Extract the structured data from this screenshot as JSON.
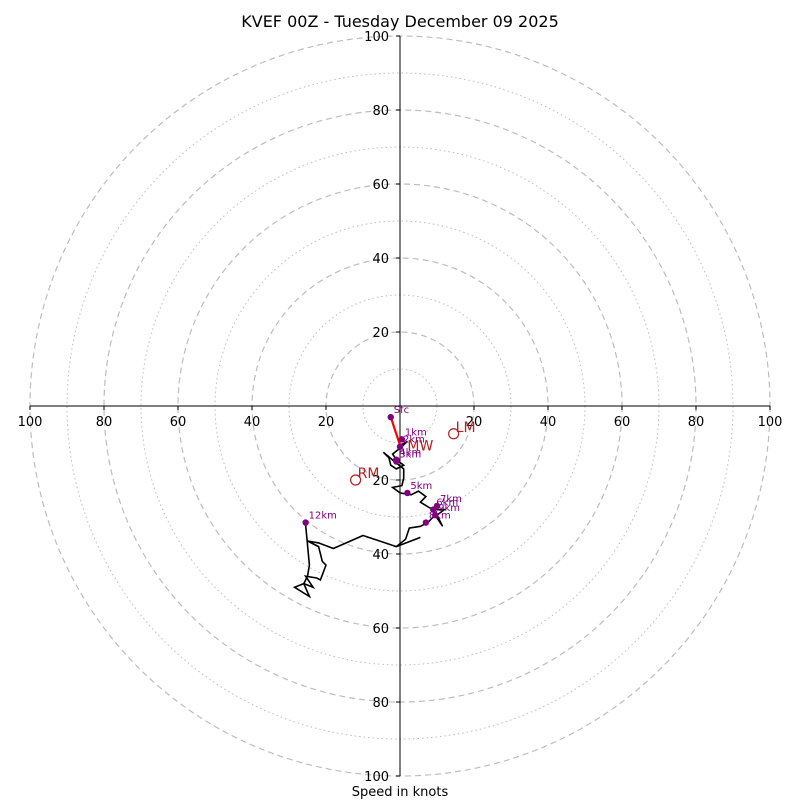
{
  "chart_data": {
    "type": "hodograph",
    "title": "KVEF 00Z - Tuesday December 09 2025",
    "xlabel": "Speed in knots",
    "range": [
      -100,
      100
    ],
    "ring_major": [
      20,
      40,
      60,
      80,
      100
    ],
    "ring_minor": [
      10,
      30,
      50,
      70,
      90
    ],
    "x_tick_labels": [
      "100",
      "80",
      "60",
      "40",
      "20",
      "20",
      "40",
      "60",
      "80",
      "100"
    ],
    "x_tick_values": [
      -100,
      -80,
      -60,
      -40,
      -20,
      20,
      40,
      60,
      80,
      100
    ],
    "y_tick_labels": [
      "100",
      "80",
      "60",
      "40",
      "20",
      "20",
      "40",
      "60",
      "80",
      "100"
    ],
    "y_tick_values": [
      100,
      80,
      60,
      40,
      20,
      -20,
      -40,
      -60,
      -80,
      -100
    ],
    "colors": {
      "trace": "#000000",
      "low_segment": "#ff0000",
      "level": "#800080",
      "motion": "#b22222",
      "grid": "#bdbdbd"
    },
    "low_segment": [
      [
        -2.5,
        -3.0
      ],
      [
        -1.5,
        -6.0
      ],
      [
        -0.5,
        -9.0
      ],
      [
        0.0,
        -10.5
      ]
    ],
    "trace": [
      [
        0.0,
        -10.5
      ],
      [
        1.5,
        -10.0
      ],
      [
        2.0,
        -9.5
      ],
      [
        0.5,
        -11.0
      ],
      [
        -2.0,
        -13.0
      ],
      [
        -1.0,
        -14.5
      ],
      [
        1.0,
        -16.0
      ],
      [
        -1.0,
        -17.0
      ],
      [
        -2.5,
        -16.0
      ],
      [
        -3.0,
        -14.0
      ],
      [
        -4.5,
        -12.5
      ],
      [
        -1.5,
        -15.0
      ],
      [
        1.0,
        -17.0
      ],
      [
        1.0,
        -19.5
      ],
      [
        0.5,
        -21.5
      ],
      [
        -2.0,
        -22.0
      ],
      [
        0.0,
        -23.5
      ],
      [
        3.0,
        -24.0
      ],
      [
        5.0,
        -23.0
      ],
      [
        7.0,
        -24.5
      ],
      [
        5.5,
        -26.0
      ],
      [
        8.0,
        -27.5
      ],
      [
        10.0,
        -28.0
      ],
      [
        12.0,
        -28.0
      ],
      [
        10.0,
        -29.5
      ],
      [
        11.5,
        -32.5
      ],
      [
        9.5,
        -29.5
      ],
      [
        7.5,
        -31.5
      ],
      [
        5.5,
        -32.5
      ],
      [
        2.5,
        -33.0
      ],
      [
        1.5,
        -36.0
      ],
      [
        -1.0,
        -38.0
      ],
      [
        5.5,
        -35.5
      ],
      [
        -1.0,
        -38.0
      ],
      [
        -4.0,
        -37.0
      ],
      [
        -10.0,
        -35.0
      ],
      [
        -18.0,
        -38.5
      ],
      [
        -22.0,
        -37.0
      ],
      [
        -25.0,
        -36.5
      ],
      [
        -22.0,
        -38.0
      ],
      [
        -21.0,
        -42.0
      ],
      [
        -20.0,
        -43.0
      ],
      [
        -21.5,
        -47.0
      ],
      [
        -22.5,
        -46.5
      ],
      [
        -25.5,
        -46.0
      ],
      [
        -23.5,
        -49.0
      ],
      [
        -26.0,
        -48.0
      ],
      [
        -28.5,
        -49.0
      ],
      [
        -24.5,
        -51.5
      ],
      [
        -26.0,
        -48.0
      ],
      [
        -25.0,
        -46.0
      ],
      [
        -24.5,
        -43.0
      ],
      [
        -25.5,
        -32.0
      ]
    ],
    "levels": [
      {
        "label": "Sfc",
        "u": -2.5,
        "v": -3.0
      },
      {
        "label": "1km",
        "u": 0.5,
        "v": -9.0
      },
      {
        "label": "2km",
        "u": 0.0,
        "v": -11.0
      },
      {
        "label": "3km",
        "u": -1.0,
        "v": -15.0
      },
      {
        "label": "4km",
        "u": -1.0,
        "v": -14.5
      },
      {
        "label": "5km",
        "u": 2.0,
        "v": -23.5
      },
      {
        "label": "6km",
        "u": 9.0,
        "v": -28.0
      },
      {
        "label": "7km",
        "u": 10.0,
        "v": -27.0
      },
      {
        "label": "8km",
        "u": 7.0,
        "v": -31.5
      },
      {
        "label": "9km",
        "u": 9.5,
        "v": -29.5
      },
      {
        "label": "12km",
        "u": -25.5,
        "v": -31.5
      }
    ],
    "motion_markers": [
      {
        "label": "RM",
        "u": -12.0,
        "v": -20.0
      },
      {
        "label": "LM",
        "u": 14.5,
        "v": -7.5
      }
    ],
    "mean_wind": {
      "label": "MW",
      "u": 2.0,
      "v": -12.0
    }
  }
}
